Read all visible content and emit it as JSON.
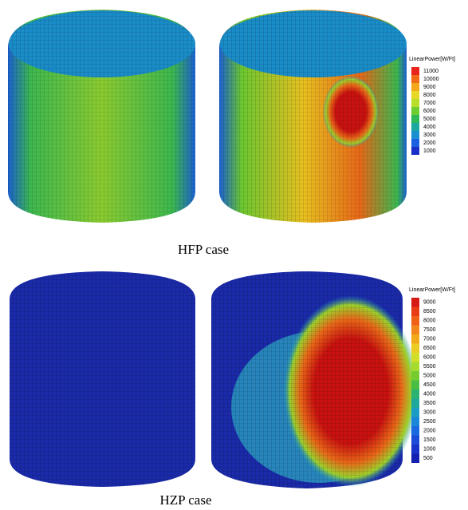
{
  "figures": [
    {
      "caption": "HFP case",
      "legend": {
        "title": "LinearPower[W/Ft]",
        "labels": [
          11000,
          10000,
          9000,
          8000,
          7000,
          6000,
          5000,
          4000,
          3000,
          2000,
          1000
        ],
        "colors": [
          "#e8241c",
          "#f06a18",
          "#f2a81a",
          "#e8d826",
          "#b8de2a",
          "#6ccc30",
          "#2eb85a",
          "#1aa8a0",
          "#1a90d0",
          "#1a60e0",
          "#1830c8"
        ]
      }
    },
    {
      "caption": "HZP case",
      "legend": {
        "title": "LinearPower[W/Ft]",
        "labels": [
          9000,
          8500,
          8000,
          7500,
          7000,
          6500,
          6000,
          5500,
          5000,
          4500,
          4000,
          3500,
          3000,
          2500,
          2000,
          1500,
          1000,
          500
        ],
        "colors": [
          "#d81a14",
          "#e83c16",
          "#f06018",
          "#f2861a",
          "#f2aa1c",
          "#eccc22",
          "#d2de28",
          "#a6da2c",
          "#74cc30",
          "#48be44",
          "#2cb270",
          "#1ea89c",
          "#1a9cc4",
          "#1a86da",
          "#1a68e0",
          "#1a4cd8",
          "#1834c8",
          "#1420b0"
        ]
      }
    }
  ]
}
